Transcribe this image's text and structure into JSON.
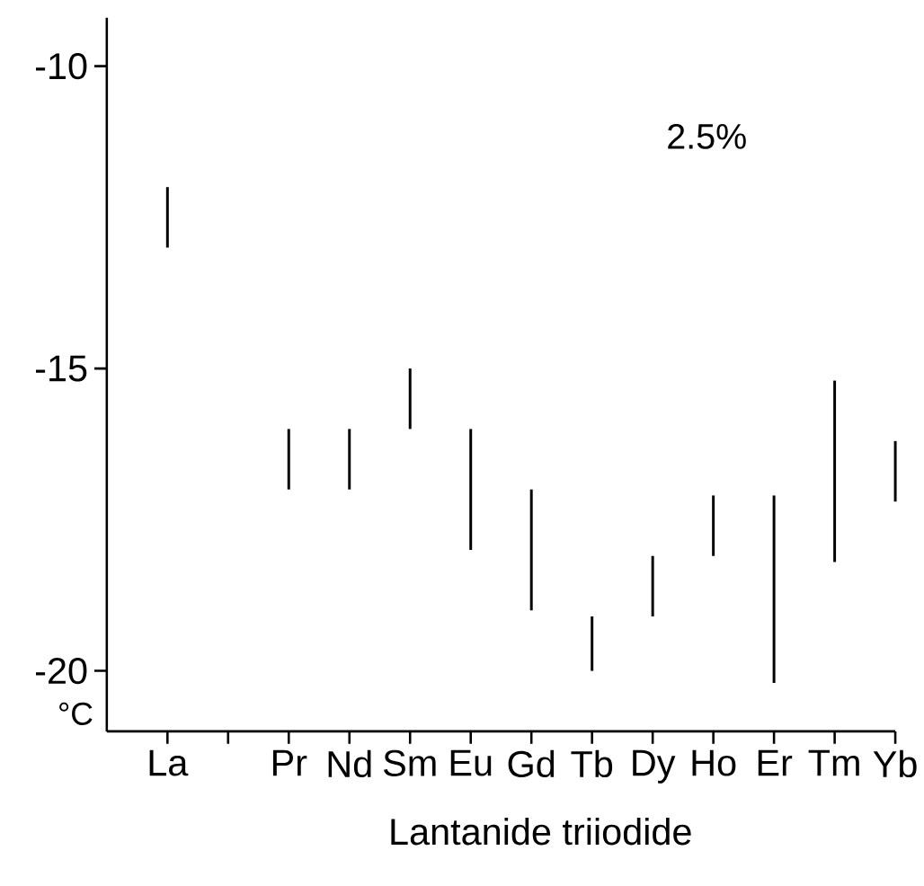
{
  "chart_data": {
    "type": "bar",
    "xlabel": "Lantanide triiodide",
    "ylabel": "°C",
    "categories": [
      "La",
      null,
      "Pr",
      "Nd",
      "Sm",
      "Eu",
      "Gd",
      "Tb",
      "Dy",
      "Ho",
      "Er",
      "Tm",
      "Yb"
    ],
    "base": [
      -13,
      null,
      -17,
      -17,
      -16,
      -18,
      -19,
      -20,
      -19.1,
      -18.1,
      -20.2,
      -18.2,
      -17.2
    ],
    "values": [
      1,
      null,
      1,
      1,
      1,
      2,
      2,
      0.9,
      1,
      1,
      3.1,
      3.0,
      1.0
    ],
    "color": "#000000",
    "ylim": [
      -21,
      -9.2
    ],
    "yticks": [
      -10,
      -15,
      -20
    ],
    "annotations": [
      "2.5%"
    ]
  }
}
